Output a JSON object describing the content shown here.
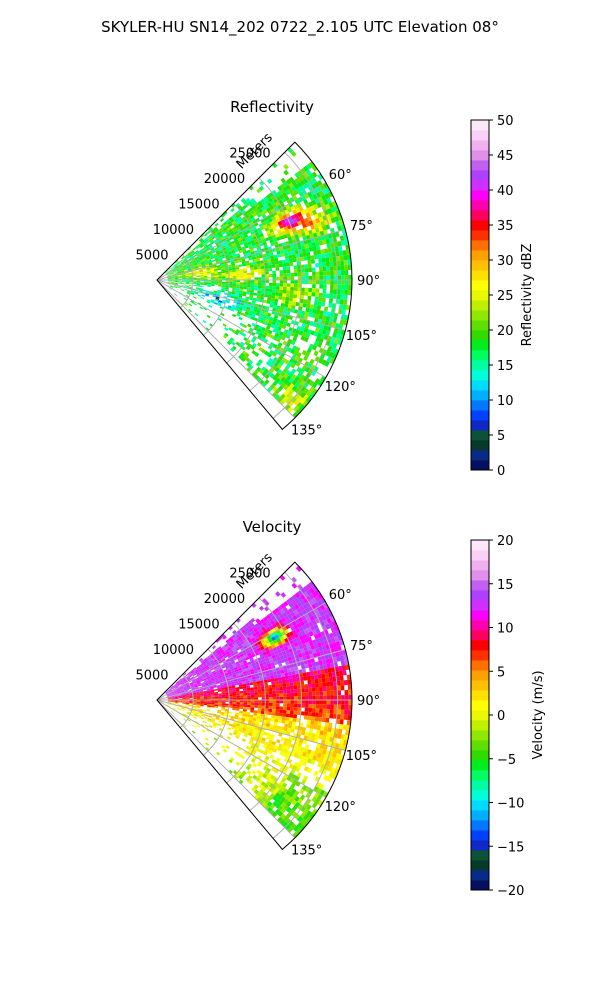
{
  "figure": {
    "suptitle": "SKYLER-HU  SN14_202  0722_2.105 UTC Elevation 08°"
  },
  "chart_data": [
    {
      "type": "heatmap",
      "title": "Reflectivity",
      "projection": "polar-sector",
      "range_axis_label": "Meters",
      "range_ticks": [
        5000,
        10000,
        15000,
        20000,
        25000
      ],
      "range_tick_labels": [
        "5000",
        "10000",
        "15000",
        "20000",
        "25000"
      ],
      "range_max": 27000,
      "azimuth_range_deg": [
        45,
        140
      ],
      "azimuth_ticks": [
        60,
        75,
        90,
        105,
        120,
        135
      ],
      "azimuth_tick_labels": [
        "60°",
        "75°",
        "90°",
        "105°",
        "120°",
        "135°"
      ],
      "grid": true,
      "colorbar": {
        "label": "Reflectivity dBZ",
        "range": [
          0,
          50
        ],
        "ticks": [
          0,
          5,
          10,
          15,
          20,
          25,
          30,
          35,
          40,
          45,
          50
        ],
        "tick_labels": [
          "0",
          "5",
          "10",
          "15",
          "20",
          "25",
          "30",
          "35",
          "40",
          "45",
          "50"
        ],
        "colors": [
          "#05105e",
          "#0a2a8a",
          "#063a2a",
          "#0b5236",
          "#1028c8",
          "#0040ff",
          "#0078ff",
          "#00b0ff",
          "#00dcff",
          "#00ffd8",
          "#00ffa0",
          "#00ff60",
          "#00ee20",
          "#30dc00",
          "#60e000",
          "#90e800",
          "#c0f000",
          "#e8f800",
          "#ffff00",
          "#ffe000",
          "#ffc000",
          "#ffa000",
          "#ff7000",
          "#ff3000",
          "#ff0000",
          "#ff0060",
          "#ff00b0",
          "#ff00ff",
          "#d030ff",
          "#b040ff",
          "#c060f0",
          "#e090e8",
          "#f0b0f0",
          "#fad0f6",
          "#fde8fa"
        ]
      },
      "field_description": "precipitation echoes mostly 15-25 dBZ with cores of 30-42 dBZ near 20000 m at 62-72°, weak 10-14 dBZ returns near 105°"
    },
    {
      "type": "heatmap",
      "title": "Velocity",
      "projection": "polar-sector",
      "range_axis_label": "Meters",
      "range_ticks": [
        5000,
        10000,
        15000,
        20000,
        25000
      ],
      "range_tick_labels": [
        "5000",
        "10000",
        "15000",
        "20000",
        "25000"
      ],
      "range_max": 27000,
      "azimuth_range_deg": [
        45,
        140
      ],
      "azimuth_ticks": [
        60,
        75,
        90,
        105,
        120,
        135
      ],
      "azimuth_tick_labels": [
        "60°",
        "75°",
        "90°",
        "105°",
        "120°",
        "135°"
      ],
      "grid": true,
      "colorbar": {
        "label": "Velocity (m/s)",
        "range": [
          -20,
          20
        ],
        "ticks": [
          -20,
          -15,
          -10,
          -5,
          0,
          5,
          10,
          15,
          20
        ],
        "tick_labels": [
          "−20",
          "−15",
          "−10",
          "−5",
          "0",
          "5",
          "10",
          "15",
          "20"
        ],
        "colors": [
          "#05105e",
          "#0a2a8a",
          "#063a2a",
          "#0b5236",
          "#1028c8",
          "#0040ff",
          "#0078ff",
          "#00b0ff",
          "#00dcff",
          "#00ffd8",
          "#00ffa0",
          "#00ff60",
          "#00ee20",
          "#30dc00",
          "#60e000",
          "#90e800",
          "#c0f000",
          "#e8f800",
          "#ffff00",
          "#ffe000",
          "#ffc000",
          "#ffa000",
          "#ff7000",
          "#ff3000",
          "#ff0000",
          "#ff0060",
          "#ff00b0",
          "#ff00ff",
          "#d030ff",
          "#b040ff",
          "#c060f0",
          "#e090e8",
          "#f0b0f0",
          "#fad0f6",
          "#fde8fa"
        ]
      },
      "field_description": "strong outbound (10-16 m/s) north of ~80°, outbound 8-12 m/s around 85-95°, 0-5 m/s south of ~100°, inbound (-10 m/s) patch near 18000 m at 63°"
    }
  ]
}
